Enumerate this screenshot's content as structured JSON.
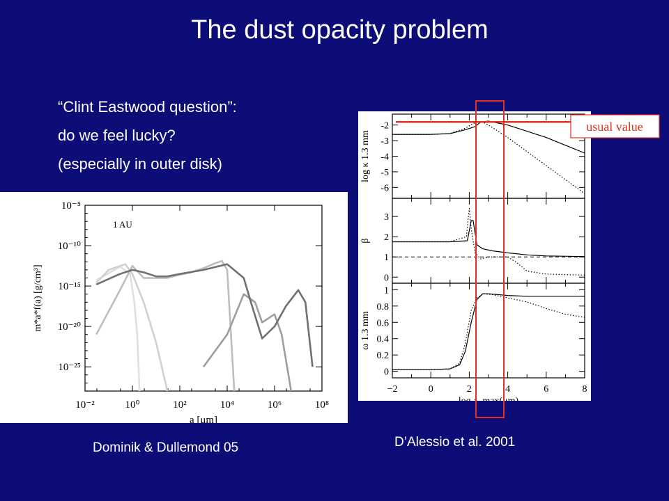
{
  "slide": {
    "title": "The dust opacity problem",
    "bullets": [
      "“Clint Eastwood question”:",
      "do we feel lucky?",
      "(especially in outer disk)"
    ],
    "caption_left": "Dominik & Dullemond 05",
    "caption_right": "D’Alessio et al. 2001",
    "usual_value_label": "usual value",
    "highlight_color": "#e03020"
  },
  "chart_data": [
    {
      "type": "line",
      "id": "dominik-dullemond",
      "annotation": "1 AU",
      "xlabel": "a [μm]",
      "ylabel": "m*a*f(a) [g/cm³]",
      "xscale": "log",
      "yscale": "log",
      "xlim": [
        0.01,
        100000000
      ],
      "ylim": [
        1e-28,
        1e-05
      ],
      "x_tick_labels": [
        "10⁻²",
        "10⁰",
        "10²",
        "10⁴",
        "10⁶",
        "10⁸"
      ],
      "y_tick_labels": [
        "10⁻⁵",
        "10⁻¹⁰",
        "10⁻¹⁵",
        "10⁻²⁰",
        "10⁻²⁵"
      ],
      "series": [
        {
          "color": "#e0e0e0",
          "x": [
            0.03,
            0.3,
            0.8,
            1.2,
            1.6,
            2.0
          ],
          "logy": [
            -14.3,
            -12.6,
            -13.5,
            -17,
            -21,
            -28
          ]
        },
        {
          "color": "#d0d0d0",
          "x": [
            0.03,
            0.1,
            0.5,
            1.0,
            3,
            10,
            30
          ],
          "logy": [
            -14.6,
            -13.0,
            -12.3,
            -13.5,
            -17,
            -22,
            -28
          ]
        },
        {
          "color": "#bdbdbd",
          "x": [
            0.03,
            0.3,
            1.0,
            3,
            10,
            30,
            100,
            300,
            1000,
            3000,
            6000,
            10000,
            20000
          ],
          "logy": [
            -21,
            -15.5,
            -12.5,
            -14,
            -14,
            -14,
            -13.6,
            -13.3,
            -12.8,
            -12.2,
            -11.9,
            -13,
            -28
          ]
        },
        {
          "color": "#9e9e9e",
          "x": [
            1000,
            10000,
            50000,
            150000,
            300000,
            1000000,
            2000000,
            5000000
          ],
          "logy": [
            -25,
            -21,
            -16,
            -17,
            -19.5,
            -18.5,
            -21,
            -28
          ]
        },
        {
          "color": "#707070",
          "x": [
            0.03,
            0.3,
            1.0,
            3,
            10,
            30,
            100,
            1000,
            10000,
            50000,
            100000,
            300000,
            1000000,
            3000000,
            10000000,
            20000000,
            40000000
          ],
          "logy": [
            -14.8,
            -13.5,
            -13.0,
            -13.3,
            -13.8,
            -13.8,
            -13.5,
            -13.0,
            -12.3,
            -14,
            -17,
            -21.5,
            -20,
            -17.5,
            -15.5,
            -17,
            -25
          ]
        }
      ]
    },
    {
      "type": "line",
      "id": "dalessio",
      "xlabel": "log a_max(μm)",
      "xlim": [
        -2,
        8
      ],
      "x_ticks": [
        -2,
        0,
        2,
        4,
        6,
        8
      ],
      "panels": [
        {
          "ylabel": "log κ 1.3 mm",
          "ylim": [
            -6.7,
            -1.3
          ],
          "y_ticks": [
            -2,
            -3,
            -4,
            -5,
            -6
          ],
          "usual_value": -1.8,
          "series": [
            {
              "style": "solid",
              "x": [
                -2,
                0,
                1.0,
                1.8,
                2.3,
                2.6,
                3.0,
                4,
                5,
                6,
                7,
                8
              ],
              "y": [
                -2.6,
                -2.6,
                -2.55,
                -2.3,
                -2.1,
                -1.8,
                -1.75,
                -2.0,
                -2.4,
                -2.8,
                -3.3,
                -3.8
              ]
            },
            {
              "style": "dotted",
              "x": [
                -2,
                0,
                1.0,
                1.8,
                2.2,
                2.6,
                3.0,
                4,
                5,
                6,
                7,
                8
              ],
              "y": [
                -2.6,
                -2.6,
                -2.55,
                -2.2,
                -1.9,
                -1.75,
                -2.0,
                -2.8,
                -3.7,
                -4.6,
                -5.5,
                -6.4
              ]
            }
          ]
        },
        {
          "ylabel": "β",
          "ylim": [
            -0.3,
            3.9
          ],
          "y_ticks": [
            0,
            1,
            2,
            3
          ],
          "reference_line": 1,
          "series": [
            {
              "style": "solid",
              "x": [
                -2,
                0,
                1,
                1.9,
                2.1,
                2.2,
                2.4,
                2.7,
                3.2,
                4,
                5,
                6,
                8
              ],
              "y": [
                1.75,
                1.75,
                1.75,
                1.8,
                2.8,
                2.8,
                1.6,
                1.4,
                1.3,
                1.2,
                1.1,
                1.05,
                1.02
              ]
            },
            {
              "style": "dotted",
              "x": [
                -2,
                0,
                1,
                1.85,
                2.0,
                2.1,
                2.3,
                2.6,
                3.0,
                4,
                4.5,
                5,
                6,
                8
              ],
              "y": [
                1.75,
                1.75,
                1.75,
                2.0,
                3.4,
                2.4,
                1.2,
                0.9,
                1.0,
                1.0,
                0.7,
                0.3,
                0.15,
                0.1
              ]
            }
          ]
        },
        {
          "ylabel": "ω 1.3 mm",
          "ylim": [
            -0.08,
            1.08
          ],
          "y_ticks": [
            0,
            0.2,
            0.4,
            0.6,
            0.8,
            1
          ],
          "series": [
            {
              "style": "solid",
              "x": [
                -2,
                0,
                1.0,
                1.5,
                1.8,
                2.1,
                2.4,
                2.7,
                3.0,
                4,
                5,
                6,
                8
              ],
              "y": [
                0.02,
                0.02,
                0.03,
                0.08,
                0.25,
                0.6,
                0.88,
                0.95,
                0.95,
                0.93,
                0.92,
                0.92,
                0.92
              ]
            },
            {
              "style": "dotted",
              "x": [
                -2,
                0,
                1.0,
                1.5,
                1.8,
                2.1,
                2.4,
                2.7,
                3.2,
                4,
                5,
                6,
                7,
                8
              ],
              "y": [
                0.02,
                0.02,
                0.03,
                0.1,
                0.35,
                0.75,
                0.9,
                0.95,
                0.94,
                0.9,
                0.85,
                0.77,
                0.7,
                0.66
              ]
            }
          ]
        }
      ]
    }
  ]
}
